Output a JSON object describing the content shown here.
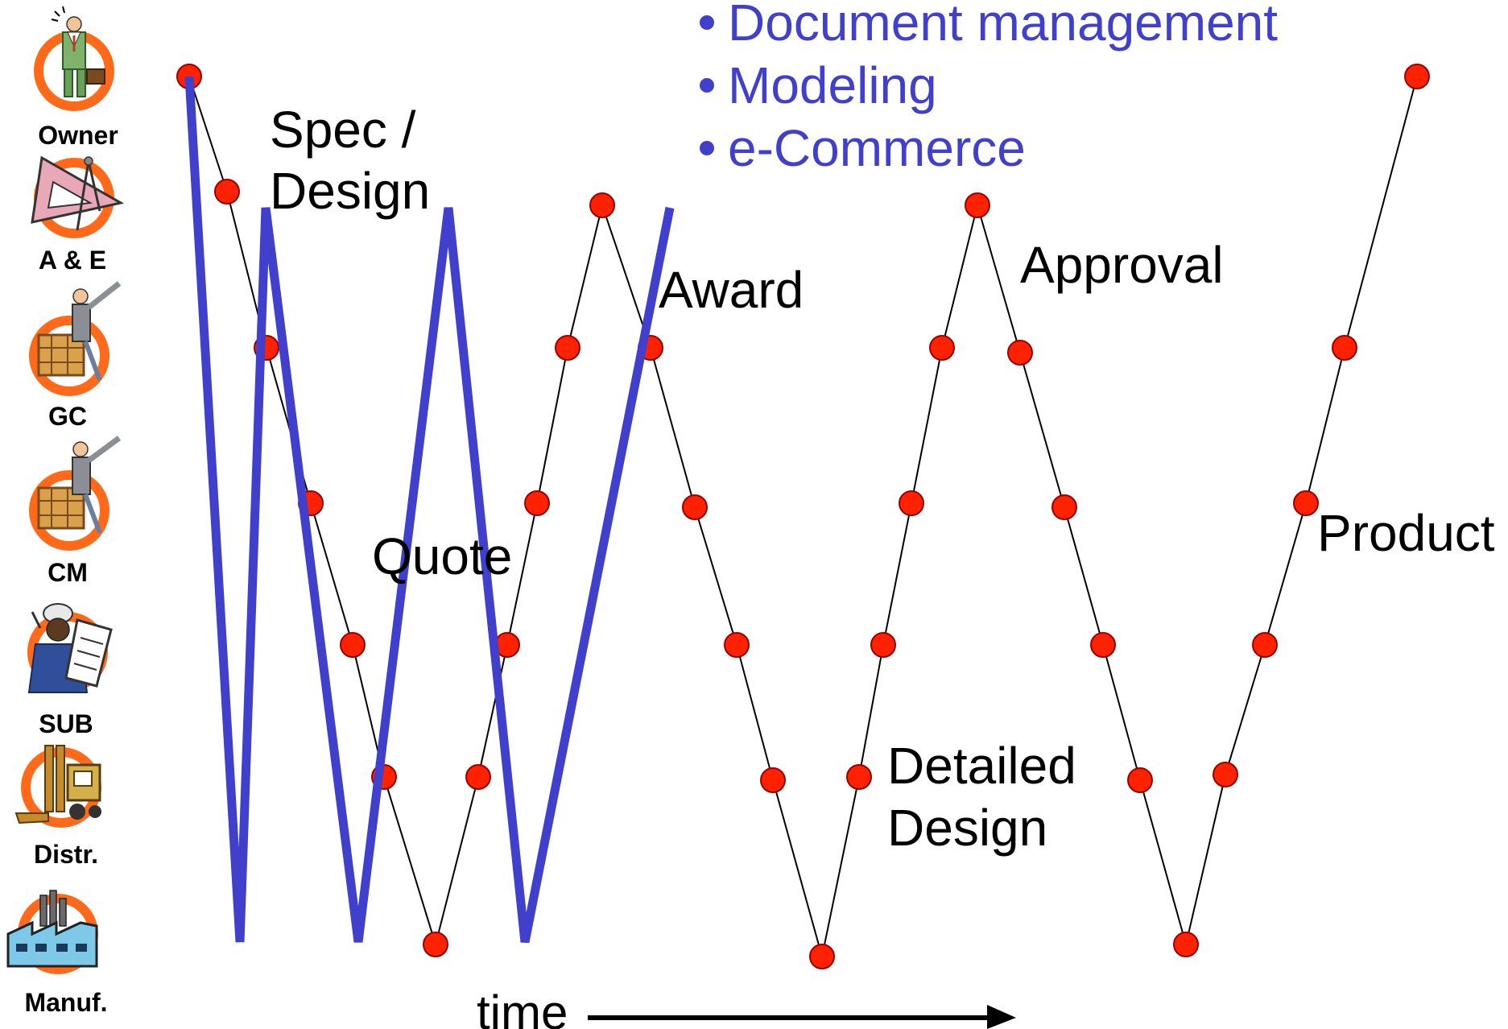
{
  "roles": [
    {
      "label": "Owner",
      "icon": "businessman-icon"
    },
    {
      "label": "A & E",
      "icon": "drafting-triangle-icon"
    },
    {
      "label": "GC",
      "icon": "contractor-icon"
    },
    {
      "label": "CM",
      "icon": "construction-manager-icon"
    },
    {
      "label": "SUB",
      "icon": "worker-with-clipboard-icon"
    },
    {
      "label": "Distr.",
      "icon": "forklift-icon"
    },
    {
      "label": "Manuf.",
      "icon": "factory-icon"
    }
  ],
  "bullets": [
    "Document management",
    "Modeling",
    "e-Commerce"
  ],
  "phases": {
    "spec_design": [
      "Spec /",
      "Design"
    ],
    "quote": "Quote",
    "award": "Award",
    "detailed_design": [
      "Detailed",
      "Design"
    ],
    "approval": "Approval",
    "product": "Product"
  },
  "time_label": "time",
  "colors": {
    "process_line": "#000000",
    "node_fill": "#ff2200",
    "node_stroke": "#990000",
    "blue_line": "#4040cc",
    "bullet_text": "#4040cc",
    "icon_ring": "#ff6a1a"
  }
}
